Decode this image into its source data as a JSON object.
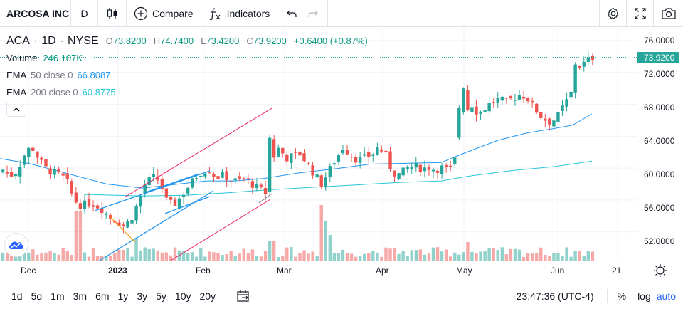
{
  "toolbar": {
    "symbol": "ARCOSA INC",
    "interval": "D",
    "compare_label": "Compare",
    "indicators_label": "Indicators",
    "icons": [
      "candles-icon",
      "plus-circle-icon",
      "fx-icon",
      "undo-icon",
      "redo-icon",
      "gear-icon",
      "fullscreen-icon",
      "camera-icon"
    ]
  },
  "legend": {
    "ticker": "ACA",
    "interval": "1D",
    "exchange": "NYSE",
    "o_label": "O",
    "o": "73.8200",
    "h_label": "H",
    "h": "74.7400",
    "l_label": "L",
    "l": "73.4200",
    "c_label": "C",
    "c": "73.9200",
    "change": "+0.6400 (+0.87%)",
    "volume_label": "Volume",
    "volume": "246.107K",
    "ema1_label": "EMA",
    "ema1_params": "50 close 0",
    "ema1_value": "66.8087",
    "ema2_label": "EMA",
    "ema2_params": "200 close 0",
    "ema2_value": "60.8775"
  },
  "price_axis": {
    "labels": [
      "76.0000",
      "72.0000",
      "68.0000",
      "64.0000",
      "60.0000",
      "56.0000",
      "52.0000"
    ],
    "last_price": "73.9200"
  },
  "time_axis": {
    "labels": [
      "Dec",
      "2023",
      "Feb",
      "Mar",
      "Apr",
      "May",
      "Jun",
      "21"
    ]
  },
  "bottombar": {
    "ranges": [
      "1d",
      "5d",
      "1m",
      "3m",
      "6m",
      "1y",
      "3y",
      "5y",
      "10y",
      "20y"
    ],
    "clock": "23:47:36 (UTC-4)",
    "percent": "%",
    "log": "log",
    "auto": "auto"
  },
  "chart_data": {
    "type": "candlestick",
    "ylim": [
      48.4,
      77.7
    ],
    "up_color": "#26a69a",
    "down_color": "#ef5350",
    "ema50_color": "#2196f3",
    "ema200_color": "#26c6da",
    "channel_color": "#2196f3",
    "trend_color": "#e91e63",
    "last_price": 73.92
  }
}
